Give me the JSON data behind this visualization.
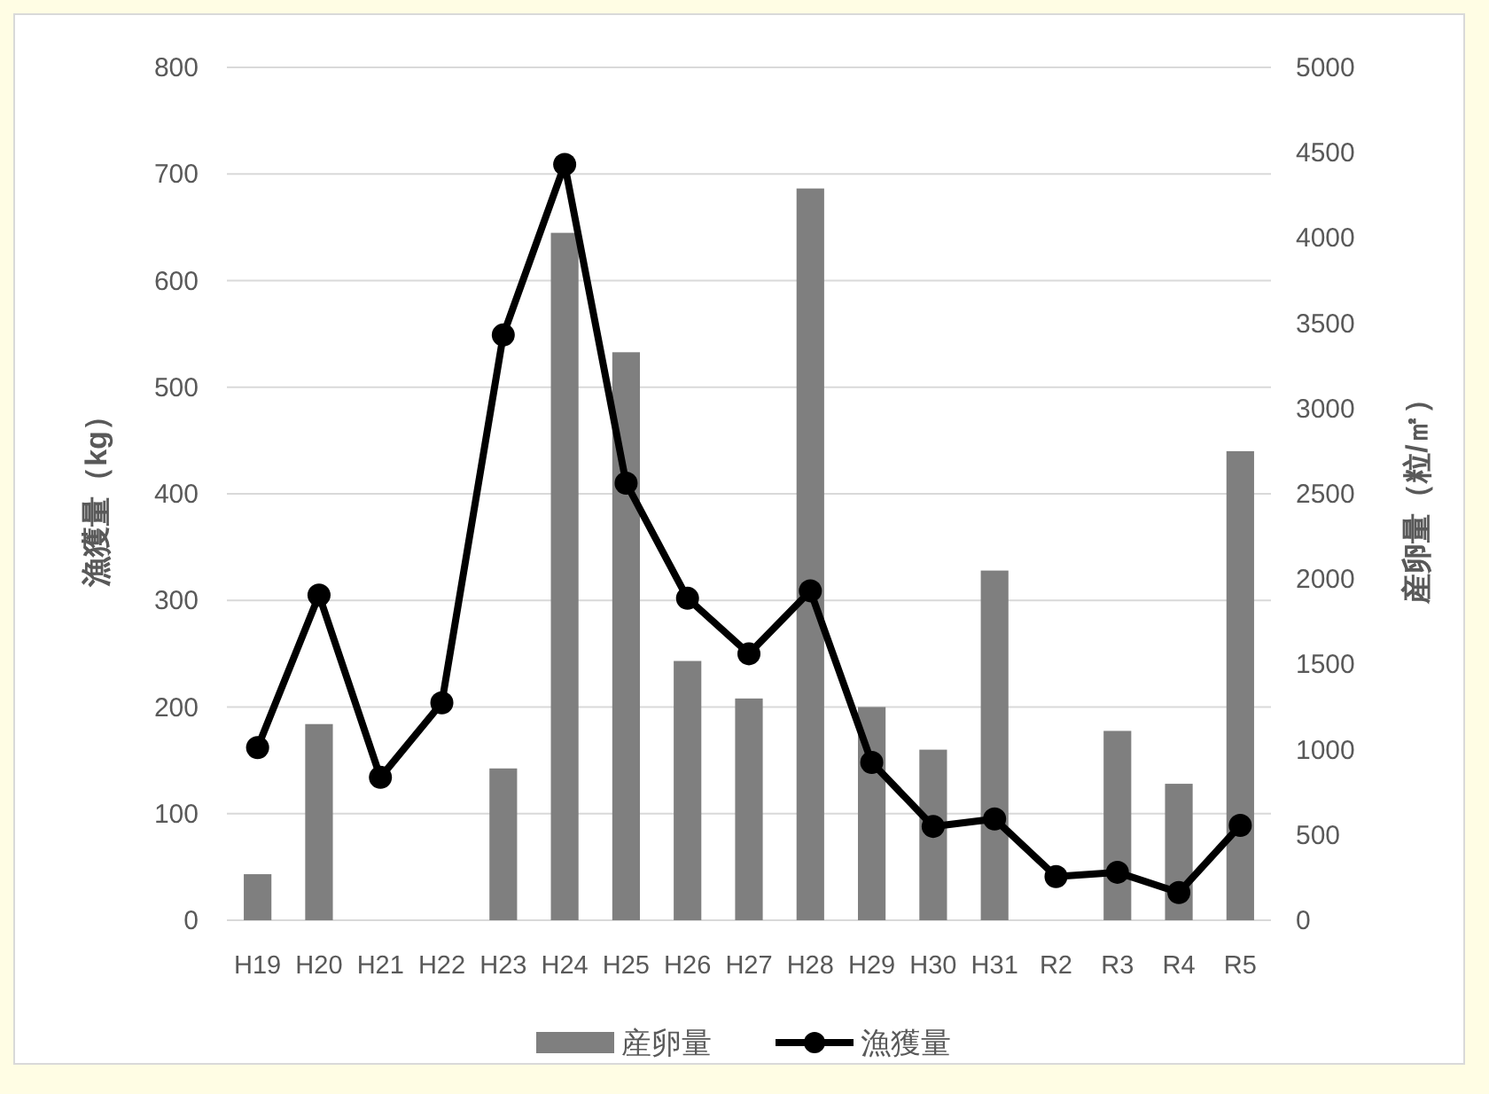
{
  "chart_data": {
    "type": "bar",
    "categories": [
      "H19",
      "H20",
      "H21",
      "H22",
      "H23",
      "H24",
      "H25",
      "H26",
      "H27",
      "H28",
      "H29",
      "H30",
      "H31",
      "R2",
      "R3",
      "R4",
      "R5"
    ],
    "series": [
      {
        "name": "産卵量",
        "axis": "y2",
        "color": "#7f7f7f",
        "values": [
          270,
          1150,
          null,
          null,
          890,
          4030,
          3330,
          1520,
          1300,
          4290,
          1250,
          1000,
          2050,
          null,
          1110,
          800,
          2750
        ]
      },
      {
        "name": "漁獲量",
        "type": "line",
        "axis": "y",
        "color": "#000000",
        "marker": "circle",
        "line_style": "solid",
        "values": [
          162,
          305,
          134,
          204,
          549,
          709,
          410,
          302,
          250,
          309,
          148,
          88,
          95,
          41,
          45,
          26,
          89
        ]
      }
    ],
    "ylabel": "漁獲量（kg）",
    "y2label": "産卵量（粒/㎡）",
    "ylim": [
      0,
      800
    ],
    "yticks": [
      0,
      100,
      200,
      300,
      400,
      500,
      600,
      700,
      800
    ],
    "y2lim": [
      0,
      5000
    ],
    "y2ticks": [
      0,
      500,
      1000,
      1500,
      2000,
      2500,
      3000,
      3500,
      4000,
      4500,
      5000
    ],
    "grid": "y",
    "legend": "bottom"
  }
}
